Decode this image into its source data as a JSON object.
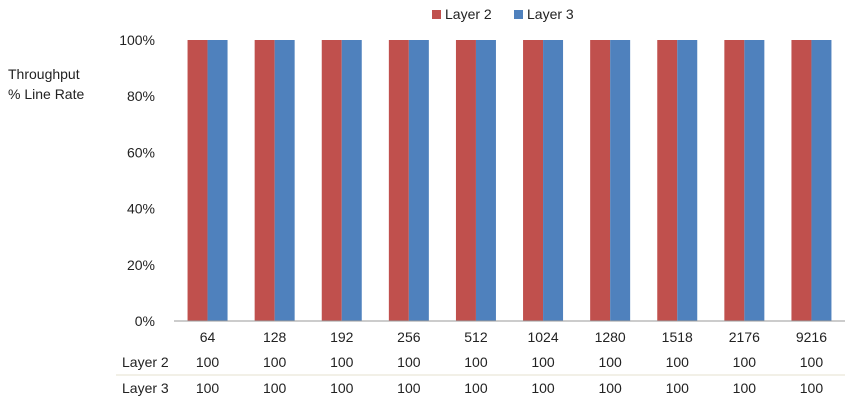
{
  "colors": {
    "layer2": "#c0504d",
    "layer3": "#4f81bd"
  },
  "chart_data": {
    "type": "bar",
    "ylabel": "Throughput\n% Line Rate",
    "yticks": [
      "0%",
      "20%",
      "40%",
      "60%",
      "80%",
      "100%"
    ],
    "ylim": [
      0,
      100
    ],
    "categories": [
      "64",
      "128",
      "192",
      "256",
      "512",
      "1024",
      "1280",
      "1518",
      "2176",
      "9216"
    ],
    "series": [
      {
        "name": "Layer 2",
        "values": [
          100,
          100,
          100,
          100,
          100,
          100,
          100,
          100,
          100,
          100
        ]
      },
      {
        "name": "Layer 3",
        "values": [
          100,
          100,
          100,
          100,
          100,
          100,
          100,
          100,
          100,
          100
        ]
      }
    ],
    "legend": "top",
    "grid": false,
    "data_table": true
  }
}
